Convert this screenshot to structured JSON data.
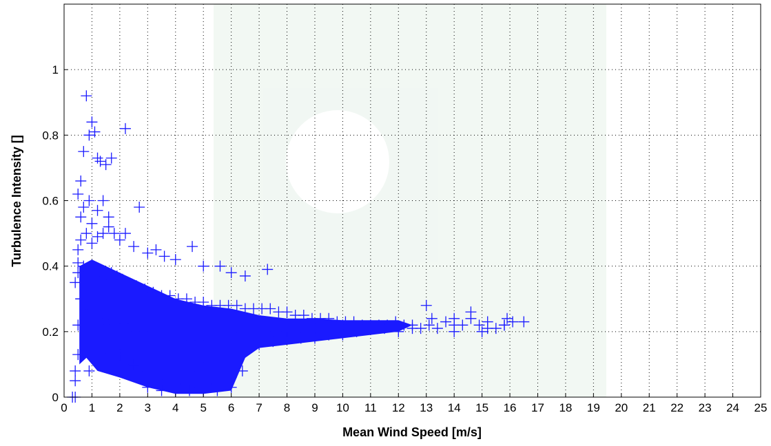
{
  "chart_data": {
    "type": "scatter",
    "title": "",
    "xlabel": "Mean Wind Speed [m/s]",
    "ylabel": "Turbulence Intensity []",
    "xlim": [
      0,
      25
    ],
    "ylim": [
      0,
      1.2
    ],
    "x_ticks": [
      0,
      1,
      2,
      3,
      4,
      5,
      6,
      7,
      8,
      9,
      10,
      11,
      12,
      13,
      14,
      15,
      16,
      17,
      18,
      19,
      20,
      21,
      22,
      23,
      24,
      25
    ],
    "y_ticks": [
      0,
      0.2,
      0.4,
      0.6,
      0.8,
      1
    ],
    "y_tick_labels": [
      "0",
      "0.2",
      "0.4",
      "0.6",
      "0.8",
      "1"
    ],
    "grid": true,
    "marker": "+",
    "color": "#1a1aff",
    "series": [
      {
        "x": [
          0.5,
          0.5,
          0.6,
          0.7,
          0.8,
          0.9,
          1.0,
          1.1,
          1.2,
          1.3,
          1.5,
          1.7,
          2.2,
          0.6,
          0.7,
          0.9,
          1.0,
          1.2,
          1.4,
          1.6,
          2.7,
          0.5,
          0.6,
          0.8,
          1.0,
          1.2,
          1.4,
          1.6,
          1.8,
          2.0,
          2.2,
          2.5,
          3.0,
          3.3,
          3.6,
          4.0,
          4.6,
          5.0,
          5.6,
          6.0,
          6.5,
          7.3,
          0.4,
          0.5,
          0.7,
          0.9,
          1.1,
          1.3,
          1.5,
          1.7,
          1.9,
          2.1,
          2.3,
          2.6,
          2.9,
          3.2,
          3.5,
          3.8,
          4.1,
          4.4,
          4.7,
          5.0,
          5.3,
          5.6,
          5.9,
          6.2,
          6.5,
          6.8,
          7.1,
          7.4,
          7.7,
          8.0,
          8.3,
          8.6,
          8.9,
          9.2,
          9.5,
          9.8,
          10.1,
          10.4,
          10.7,
          11.0,
          11.3,
          11.6,
          11.9,
          12.2,
          12.5,
          12.8,
          13.1,
          13.4,
          13.7,
          14.0,
          14.3,
          14.6,
          14.9,
          15.2,
          15.5,
          15.8,
          16.1,
          16.5,
          0.6,
          0.8,
          1.0,
          1.2,
          1.4,
          1.6,
          1.8,
          2.0,
          2.3,
          2.6,
          2.9,
          3.2,
          3.5,
          3.8,
          4.1,
          4.4,
          4.7,
          5.0,
          5.3,
          5.6,
          5.9,
          6.2,
          6.5,
          6.8,
          7.2,
          7.6,
          8.0,
          8.5,
          9.0,
          9.5,
          10.0,
          10.5,
          11.0,
          11.5,
          12.0,
          12.5,
          13.2,
          14.0,
          14.6,
          15.2,
          15.9,
          2.0,
          2.5,
          3.0,
          3.5,
          4.0,
          4.5,
          5.0,
          5.5,
          6.0,
          6.5,
          7.0,
          7.5,
          8.0,
          8.5,
          9.0,
          9.5,
          10.0,
          13.0,
          14.0,
          15.0,
          15.8,
          1.5,
          2.0,
          2.5,
          3.0,
          3.5,
          4.0,
          4.5,
          5.0,
          5.5,
          6.0,
          6.4,
          3.0,
          3.5,
          4.0,
          4.5,
          5.0,
          5.5,
          6.0,
          0.4,
          0.4,
          0.5,
          0.5,
          0.6,
          0.3,
          0.4,
          0.9,
          1.0,
          1.1
        ],
        "y": [
          0.41,
          0.62,
          0.66,
          0.75,
          0.92,
          0.8,
          0.84,
          0.81,
          0.73,
          0.72,
          0.71,
          0.73,
          0.82,
          0.55,
          0.58,
          0.6,
          0.53,
          0.57,
          0.6,
          0.55,
          0.58,
          0.45,
          0.48,
          0.5,
          0.47,
          0.49,
          0.5,
          0.52,
          0.5,
          0.48,
          0.5,
          0.46,
          0.44,
          0.45,
          0.43,
          0.42,
          0.46,
          0.4,
          0.4,
          0.38,
          0.37,
          0.39,
          0.35,
          0.38,
          0.4,
          0.38,
          0.37,
          0.38,
          0.36,
          0.38,
          0.37,
          0.36,
          0.35,
          0.34,
          0.33,
          0.32,
          0.31,
          0.31,
          0.3,
          0.3,
          0.29,
          0.29,
          0.28,
          0.28,
          0.28,
          0.28,
          0.27,
          0.27,
          0.27,
          0.27,
          0.26,
          0.26,
          0.25,
          0.25,
          0.24,
          0.24,
          0.24,
          0.23,
          0.23,
          0.23,
          0.22,
          0.22,
          0.22,
          0.22,
          0.23,
          0.22,
          0.22,
          0.21,
          0.22,
          0.21,
          0.23,
          0.22,
          0.22,
          0.24,
          0.22,
          0.23,
          0.21,
          0.22,
          0.23,
          0.23,
          0.3,
          0.27,
          0.25,
          0.24,
          0.23,
          0.22,
          0.22,
          0.21,
          0.21,
          0.2,
          0.2,
          0.2,
          0.2,
          0.19,
          0.19,
          0.19,
          0.19,
          0.19,
          0.19,
          0.18,
          0.18,
          0.18,
          0.19,
          0.19,
          0.2,
          0.2,
          0.2,
          0.21,
          0.21,
          0.21,
          0.22,
          0.2,
          0.21,
          0.21,
          0.2,
          0.21,
          0.24,
          0.2,
          0.26,
          0.21,
          0.24,
          0.12,
          0.1,
          0.08,
          0.07,
          0.07,
          0.08,
          0.09,
          0.11,
          0.13,
          0.15,
          0.16,
          0.17,
          0.18,
          0.18,
          0.18,
          0.19,
          0.19,
          0.28,
          0.24,
          0.2,
          0.22,
          0.15,
          0.13,
          0.1,
          0.06,
          0.04,
          0.04,
          0.03,
          0.03,
          0.04,
          0.06,
          0.08,
          0.03,
          0.02,
          0.02,
          0.02,
          0.02,
          0.02,
          0.03,
          0.0,
          0.05,
          0.13,
          0.22,
          0.3,
          0.0,
          0.08,
          0.08,
          0.18,
          0.38
        ]
      }
    ]
  }
}
